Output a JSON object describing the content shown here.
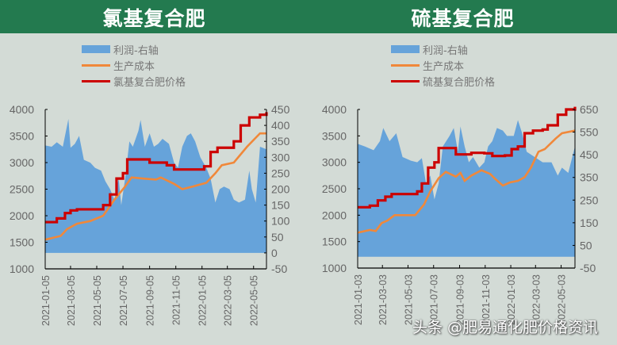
{
  "colors": {
    "header": "#237a4f",
    "profit": "#66a3da",
    "cost": "#f0883a",
    "price": "#cc0000",
    "axis": "#000000",
    "tick_text": "#666666"
  },
  "watermark": "头条 @肥易通化肥价格资讯",
  "chart_data": [
    {
      "type": "area+line",
      "title": "氯基复合肥",
      "legend": [
        "利润-右轴",
        "生产成本",
        "氯基复合肥价格"
      ],
      "legend_placement": "top",
      "xlim": [
        "2021-01-05",
        "2022-06-04"
      ],
      "xticks": [
        "2021-01-05",
        "2021-03-05",
        "2021-05-05",
        "2021-07-05",
        "2021-09-05",
        "2021-11-05",
        "2022-01-05",
        "2022-03-05",
        "2022-05-05"
      ],
      "ylim": [
        1000,
        4000
      ],
      "yticks": [
        1000,
        1500,
        2000,
        2500,
        3000,
        3500,
        4000
      ],
      "y2lim": [
        -50,
        450
      ],
      "y2ticks": [
        -50,
        0,
        50,
        100,
        150,
        200,
        250,
        300,
        350,
        400,
        450
      ],
      "grid": false,
      "series": [
        {
          "name": "利润-右轴",
          "axis": "right",
          "type": "area",
          "points": [
            [
              "2021-01-05",
              337
            ],
            [
              "2021-01-20",
              333
            ],
            [
              "2021-02-01",
              347
            ],
            [
              "2021-02-15",
              333
            ],
            [
              "2021-02-28",
              420
            ],
            [
              "2021-03-05",
              330
            ],
            [
              "2021-03-15",
              342
            ],
            [
              "2021-03-25",
              367
            ],
            [
              "2021-04-05",
              292
            ],
            [
              "2021-04-20",
              283
            ],
            [
              "2021-05-01",
              267
            ],
            [
              "2021-05-15",
              258
            ],
            [
              "2021-05-25",
              225
            ],
            [
              "2021-06-05",
              200
            ],
            [
              "2021-06-15",
              167
            ],
            [
              "2021-06-25",
              233
            ],
            [
              "2021-07-01",
              150
            ],
            [
              "2021-07-10",
              233
            ],
            [
              "2021-07-20",
              350
            ],
            [
              "2021-07-28",
              333
            ],
            [
              "2021-08-10",
              383
            ],
            [
              "2021-08-15",
              417
            ],
            [
              "2021-08-25",
              333
            ],
            [
              "2021-09-05",
              375
            ],
            [
              "2021-09-15",
              333
            ],
            [
              "2021-09-25",
              342
            ],
            [
              "2021-10-05",
              358
            ],
            [
              "2021-10-20",
              342
            ],
            [
              "2021-11-01",
              283
            ],
            [
              "2021-11-10",
              267
            ],
            [
              "2021-11-20",
              333
            ],
            [
              "2021-12-01",
              367
            ],
            [
              "2021-12-10",
              375
            ],
            [
              "2021-12-20",
              350
            ],
            [
              "2022-01-01",
              300
            ],
            [
              "2022-01-15",
              267
            ],
            [
              "2022-01-25",
              233
            ],
            [
              "2022-02-05",
              158
            ],
            [
              "2022-02-15",
              200
            ],
            [
              "2022-02-25",
              208
            ],
            [
              "2022-03-10",
              200
            ],
            [
              "2022-03-20",
              167
            ],
            [
              "2022-04-01",
              158
            ],
            [
              "2022-04-15",
              167
            ],
            [
              "2022-04-25",
              258
            ],
            [
              "2022-05-01",
              200
            ],
            [
              "2022-05-10",
              158
            ],
            [
              "2022-05-20",
              333
            ],
            [
              "2022-06-04",
              325
            ]
          ]
        },
        {
          "name": "生产成本",
          "axis": "left",
          "type": "line",
          "points": [
            [
              "2021-01-05",
              1550
            ],
            [
              "2021-02-10",
              1620
            ],
            [
              "2021-02-25",
              1750
            ],
            [
              "2021-03-20",
              1850
            ],
            [
              "2021-04-20",
              1900
            ],
            [
              "2021-05-20",
              2000
            ],
            [
              "2021-06-15",
              2300
            ],
            [
              "2021-07-10",
              2550
            ],
            [
              "2021-07-25",
              2720
            ],
            [
              "2021-08-20",
              2700
            ],
            [
              "2021-09-20",
              2680
            ],
            [
              "2021-10-01",
              2720
            ],
            [
              "2021-11-01",
              2600
            ],
            [
              "2021-11-20",
              2500
            ],
            [
              "2021-12-15",
              2550
            ],
            [
              "2022-01-15",
              2620
            ],
            [
              "2022-02-05",
              2800
            ],
            [
              "2022-02-20",
              2950
            ],
            [
              "2022-03-20",
              3000
            ],
            [
              "2022-04-20",
              3300
            ],
            [
              "2022-05-20",
              3550
            ],
            [
              "2022-06-04",
              3550
            ]
          ]
        },
        {
          "name": "氯基复合肥价格",
          "axis": "left",
          "type": "step",
          "points": [
            [
              "2021-01-05",
              1880
            ],
            [
              "2021-02-01",
              1950
            ],
            [
              "2021-02-20",
              2050
            ],
            [
              "2021-03-05",
              2100
            ],
            [
              "2021-03-20",
              2120
            ],
            [
              "2021-05-20",
              2200
            ],
            [
              "2021-06-05",
              2400
            ],
            [
              "2021-06-20",
              2700
            ],
            [
              "2021-07-05",
              2800
            ],
            [
              "2021-07-15",
              3060
            ],
            [
              "2021-09-05",
              3000
            ],
            [
              "2021-10-15",
              2950
            ],
            [
              "2021-11-01",
              2870
            ],
            [
              "2022-01-10",
              2930
            ],
            [
              "2022-01-25",
              3200
            ],
            [
              "2022-02-10",
              3280
            ],
            [
              "2022-03-20",
              3400
            ],
            [
              "2022-04-05",
              3700
            ],
            [
              "2022-04-25",
              3850
            ],
            [
              "2022-05-20",
              3900
            ],
            [
              "2022-06-04",
              3950
            ]
          ]
        }
      ]
    },
    {
      "type": "area+line",
      "title": "硫基复合肥",
      "legend": [
        "利润-右轴",
        "生产成本",
        "硫基复合肥价格"
      ],
      "legend_placement": "top",
      "xlim": [
        "2021-01-03",
        "2022-06-05"
      ],
      "xticks": [
        "2021-01-03",
        "2021-03-03",
        "2021-05-03",
        "2021-07-03",
        "2021-09-03",
        "2021-11-03",
        "2022-01-03",
        "2022-03-03",
        "2022-05-03"
      ],
      "ylim": [
        1000,
        4000
      ],
      "yticks": [
        1000,
        1500,
        2000,
        2500,
        3000,
        3500,
        4000
      ],
      "y2lim": [
        -50,
        650
      ],
      "y2ticks": [
        -50,
        50,
        150,
        250,
        350,
        450,
        550,
        650
      ],
      "grid": false,
      "series": [
        {
          "name": "利润-右轴",
          "axis": "right",
          "type": "area",
          "points": [
            [
              "2021-01-03",
              498
            ],
            [
              "2021-01-20",
              487
            ],
            [
              "2021-02-10",
              470
            ],
            [
              "2021-02-25",
              510
            ],
            [
              "2021-03-05",
              568
            ],
            [
              "2021-03-20",
              510
            ],
            [
              "2021-04-05",
              545
            ],
            [
              "2021-04-20",
              440
            ],
            [
              "2021-05-10",
              424
            ],
            [
              "2021-05-25",
              417
            ],
            [
              "2021-06-05",
              435
            ],
            [
              "2021-06-15",
              323
            ],
            [
              "2021-06-25",
              358
            ],
            [
              "2021-07-05",
              253
            ],
            [
              "2021-07-15",
              323
            ],
            [
              "2021-07-25",
              487
            ],
            [
              "2021-08-10",
              533
            ],
            [
              "2021-08-20",
              568
            ],
            [
              "2021-08-30",
              463
            ],
            [
              "2021-09-05",
              575
            ],
            [
              "2021-09-15",
              487
            ],
            [
              "2021-09-25",
              417
            ],
            [
              "2021-10-05",
              440
            ],
            [
              "2021-10-20",
              393
            ],
            [
              "2021-11-01",
              417
            ],
            [
              "2021-11-10",
              487
            ],
            [
              "2021-11-20",
              510
            ],
            [
              "2021-12-01",
              568
            ],
            [
              "2021-12-15",
              557
            ],
            [
              "2021-12-25",
              533
            ],
            [
              "2022-01-10",
              533
            ],
            [
              "2022-01-20",
              603
            ],
            [
              "2022-01-30",
              545
            ],
            [
              "2022-02-10",
              463
            ],
            [
              "2022-03-01",
              440
            ],
            [
              "2022-03-20",
              417
            ],
            [
              "2022-04-10",
              417
            ],
            [
              "2022-04-25",
              358
            ],
            [
              "2022-05-05",
              393
            ],
            [
              "2022-05-20",
              370
            ],
            [
              "2022-06-05",
              487
            ]
          ]
        },
        {
          "name": "生产成本",
          "axis": "left",
          "type": "line",
          "points": [
            [
              "2021-01-03",
              1670
            ],
            [
              "2021-02-01",
              1720
            ],
            [
              "2021-02-15",
              1700
            ],
            [
              "2021-03-01",
              1850
            ],
            [
              "2021-03-15",
              1900
            ],
            [
              "2021-04-01",
              2000
            ],
            [
              "2021-05-20",
              2000
            ],
            [
              "2021-06-10",
              2200
            ],
            [
              "2021-06-25",
              2450
            ],
            [
              "2021-07-15",
              2700
            ],
            [
              "2021-08-01",
              2820
            ],
            [
              "2021-08-25",
              2730
            ],
            [
              "2021-09-05",
              2800
            ],
            [
              "2021-09-15",
              2650
            ],
            [
              "2021-10-01",
              2750
            ],
            [
              "2021-10-25",
              2850
            ],
            [
              "2021-11-15",
              2780
            ],
            [
              "2021-11-25",
              2700
            ],
            [
              "2021-12-15",
              2560
            ],
            [
              "2022-01-01",
              2620
            ],
            [
              "2022-01-20",
              2650
            ],
            [
              "2022-02-05",
              2720
            ],
            [
              "2022-02-20",
              2900
            ],
            [
              "2022-03-10",
              3200
            ],
            [
              "2022-03-25",
              3250
            ],
            [
              "2022-04-20",
              3450
            ],
            [
              "2022-05-05",
              3550
            ],
            [
              "2022-06-05",
              3600
            ]
          ]
        },
        {
          "name": "硫基复合肥价格",
          "axis": "left",
          "type": "step",
          "points": [
            [
              "2021-01-03",
              2150
            ],
            [
              "2021-02-01",
              2180
            ],
            [
              "2021-02-20",
              2280
            ],
            [
              "2021-03-10",
              2350
            ],
            [
              "2021-03-25",
              2400
            ],
            [
              "2021-05-25",
              2450
            ],
            [
              "2021-06-05",
              2600
            ],
            [
              "2021-06-20",
              2900
            ],
            [
              "2021-07-05",
              3000
            ],
            [
              "2021-07-15",
              3270
            ],
            [
              "2021-08-25",
              3150
            ],
            [
              "2021-10-01",
              3180
            ],
            [
              "2021-11-01",
              3170
            ],
            [
              "2021-11-20",
              3120
            ],
            [
              "2021-12-20",
              3130
            ],
            [
              "2022-01-05",
              3250
            ],
            [
              "2022-01-20",
              3300
            ],
            [
              "2022-02-05",
              3550
            ],
            [
              "2022-02-25",
              3600
            ],
            [
              "2022-03-20",
              3620
            ],
            [
              "2022-04-01",
              3700
            ],
            [
              "2022-04-25",
              3900
            ],
            [
              "2022-05-15",
              4000
            ],
            [
              "2022-06-05",
              4050
            ]
          ]
        }
      ]
    }
  ]
}
